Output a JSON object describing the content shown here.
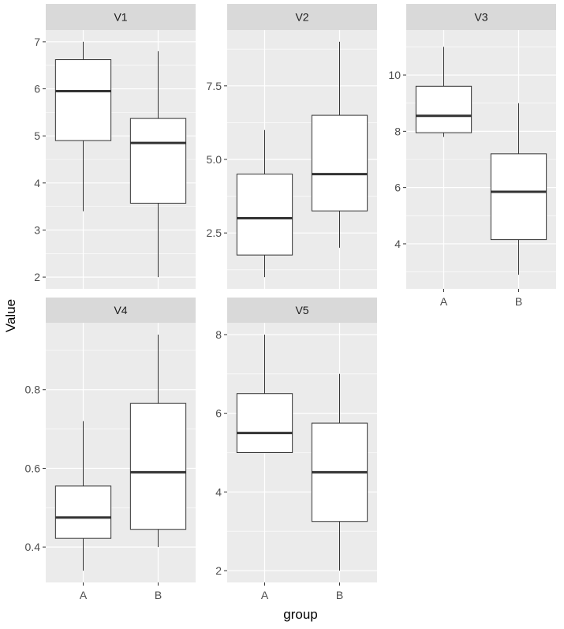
{
  "chart_data": {
    "type": "box",
    "xlabel": "group",
    "ylabel": "Value",
    "colors": {
      "panel_bg": "#ebebeb",
      "strip_bg": "#d9d9d9",
      "grid": "#ffffff",
      "box_fill": "#ffffff",
      "box_stroke": "#333333",
      "text": "#4d4d4d"
    },
    "panels": [
      {
        "title": "V1",
        "categories": [
          "A",
          "B"
        ],
        "show_x_ticks": false,
        "ylim": [
          1.75,
          7.25
        ],
        "yticks": [
          "2",
          "3",
          "4",
          "5",
          "6",
          "7"
        ],
        "yticks_num": [
          2,
          3,
          4,
          5,
          6,
          7
        ],
        "boxes": [
          {
            "category": "A",
            "min": 3.4,
            "q1": 4.9,
            "median": 5.95,
            "q3": 6.62,
            "max": 7.0
          },
          {
            "category": "B",
            "min": 2.0,
            "q1": 3.57,
            "median": 4.85,
            "q3": 5.37,
            "max": 6.8
          }
        ]
      },
      {
        "title": "V2",
        "categories": [
          "A",
          "B"
        ],
        "show_x_ticks": false,
        "ylim": [
          0.6,
          9.4
        ],
        "yticks": [
          "2.5",
          "5.0",
          "7.5"
        ],
        "yticks_num": [
          2.5,
          5.0,
          7.5
        ],
        "boxes": [
          {
            "category": "A",
            "min": 1.0,
            "q1": 1.75,
            "median": 3.0,
            "q3": 4.5,
            "max": 6.0
          },
          {
            "category": "B",
            "min": 2.0,
            "q1": 3.25,
            "median": 4.5,
            "q3": 6.5,
            "max": 9.0
          }
        ]
      },
      {
        "title": "V3",
        "categories": [
          "A",
          "B"
        ],
        "show_x_ticks": true,
        "ylim": [
          2.4,
          11.6
        ],
        "yticks": [
          "4",
          "6",
          "8",
          "10"
        ],
        "yticks_num": [
          4,
          6,
          8,
          10
        ],
        "boxes": [
          {
            "category": "A",
            "min": 7.8,
            "q1": 7.95,
            "median": 8.55,
            "q3": 9.6,
            "max": 11.0
          },
          {
            "category": "B",
            "min": 2.9,
            "q1": 4.15,
            "median": 5.85,
            "q3": 7.2,
            "max": 9.0
          }
        ]
      },
      {
        "title": "V4",
        "categories": [
          "A",
          "B"
        ],
        "show_x_ticks": true,
        "ylim": [
          0.31,
          0.97
        ],
        "yticks": [
          "0.4",
          "0.6",
          "0.8"
        ],
        "yticks_num": [
          0.4,
          0.6,
          0.8
        ],
        "boxes": [
          {
            "category": "A",
            "min": 0.34,
            "q1": 0.422,
            "median": 0.475,
            "q3": 0.555,
            "max": 0.72
          },
          {
            "category": "B",
            "min": 0.4,
            "q1": 0.445,
            "median": 0.59,
            "q3": 0.765,
            "max": 0.94
          }
        ]
      },
      {
        "title": "V5",
        "categories": [
          "A",
          "B"
        ],
        "show_x_ticks": true,
        "ylim": [
          1.7,
          8.3
        ],
        "yticks": [
          "2",
          "4",
          "6",
          "8"
        ],
        "yticks_num": [
          2,
          4,
          6,
          8
        ],
        "boxes": [
          {
            "category": "A",
            "min": 5.0,
            "q1": 5.0,
            "median": 5.5,
            "q3": 6.5,
            "max": 8.0
          },
          {
            "category": "B",
            "min": 2.0,
            "q1": 3.25,
            "median": 4.5,
            "q3": 5.75,
            "max": 7.0
          }
        ]
      }
    ]
  }
}
